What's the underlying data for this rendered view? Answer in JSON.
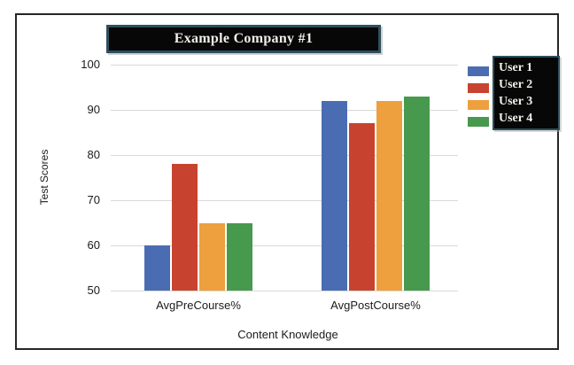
{
  "title_box": {
    "label": "Example Company #1"
  },
  "legend": {
    "position": "right",
    "items": [
      {
        "label": "User 1",
        "color": "#4a6cb2"
      },
      {
        "label": "User 2",
        "color": "#c8432f"
      },
      {
        "label": "User 3",
        "color": "#eda03d"
      },
      {
        "label": "User 4",
        "color": "#47994e"
      }
    ]
  },
  "axes": {
    "y_label": "Test Scores",
    "x_label": "Content Knowledge",
    "y_tick_labels": [
      "50",
      "60",
      "70",
      "80",
      "90",
      "100"
    ]
  },
  "chart_data": {
    "type": "bar",
    "title": "Example Company #1",
    "xlabel": "Content Knowledge",
    "ylabel": "Test Scores",
    "categories": [
      "AvgPreCourse%",
      "AvgPostCourse%"
    ],
    "series": [
      {
        "name": "User 1",
        "color": "#4a6cb2",
        "values": [
          60,
          92
        ]
      },
      {
        "name": "User 2",
        "color": "#c8432f",
        "values": [
          78,
          87
        ]
      },
      {
        "name": "User 3",
        "color": "#eda03d",
        "values": [
          65,
          92
        ]
      },
      {
        "name": "User 4",
        "color": "#47994e",
        "values": [
          65,
          93
        ]
      }
    ],
    "ylim": [
      50,
      100
    ],
    "yticks": [
      50,
      60,
      70,
      80,
      90,
      100
    ],
    "grid": true,
    "legend_position": "right",
    "colors": {
      "grid": "#d9d9d9",
      "box_fill": "#070707",
      "box_border": "#2e4f5c",
      "frame_border": "#262626",
      "axis_text": "#1b1b1b",
      "box_text": "#f2efe9"
    }
  }
}
